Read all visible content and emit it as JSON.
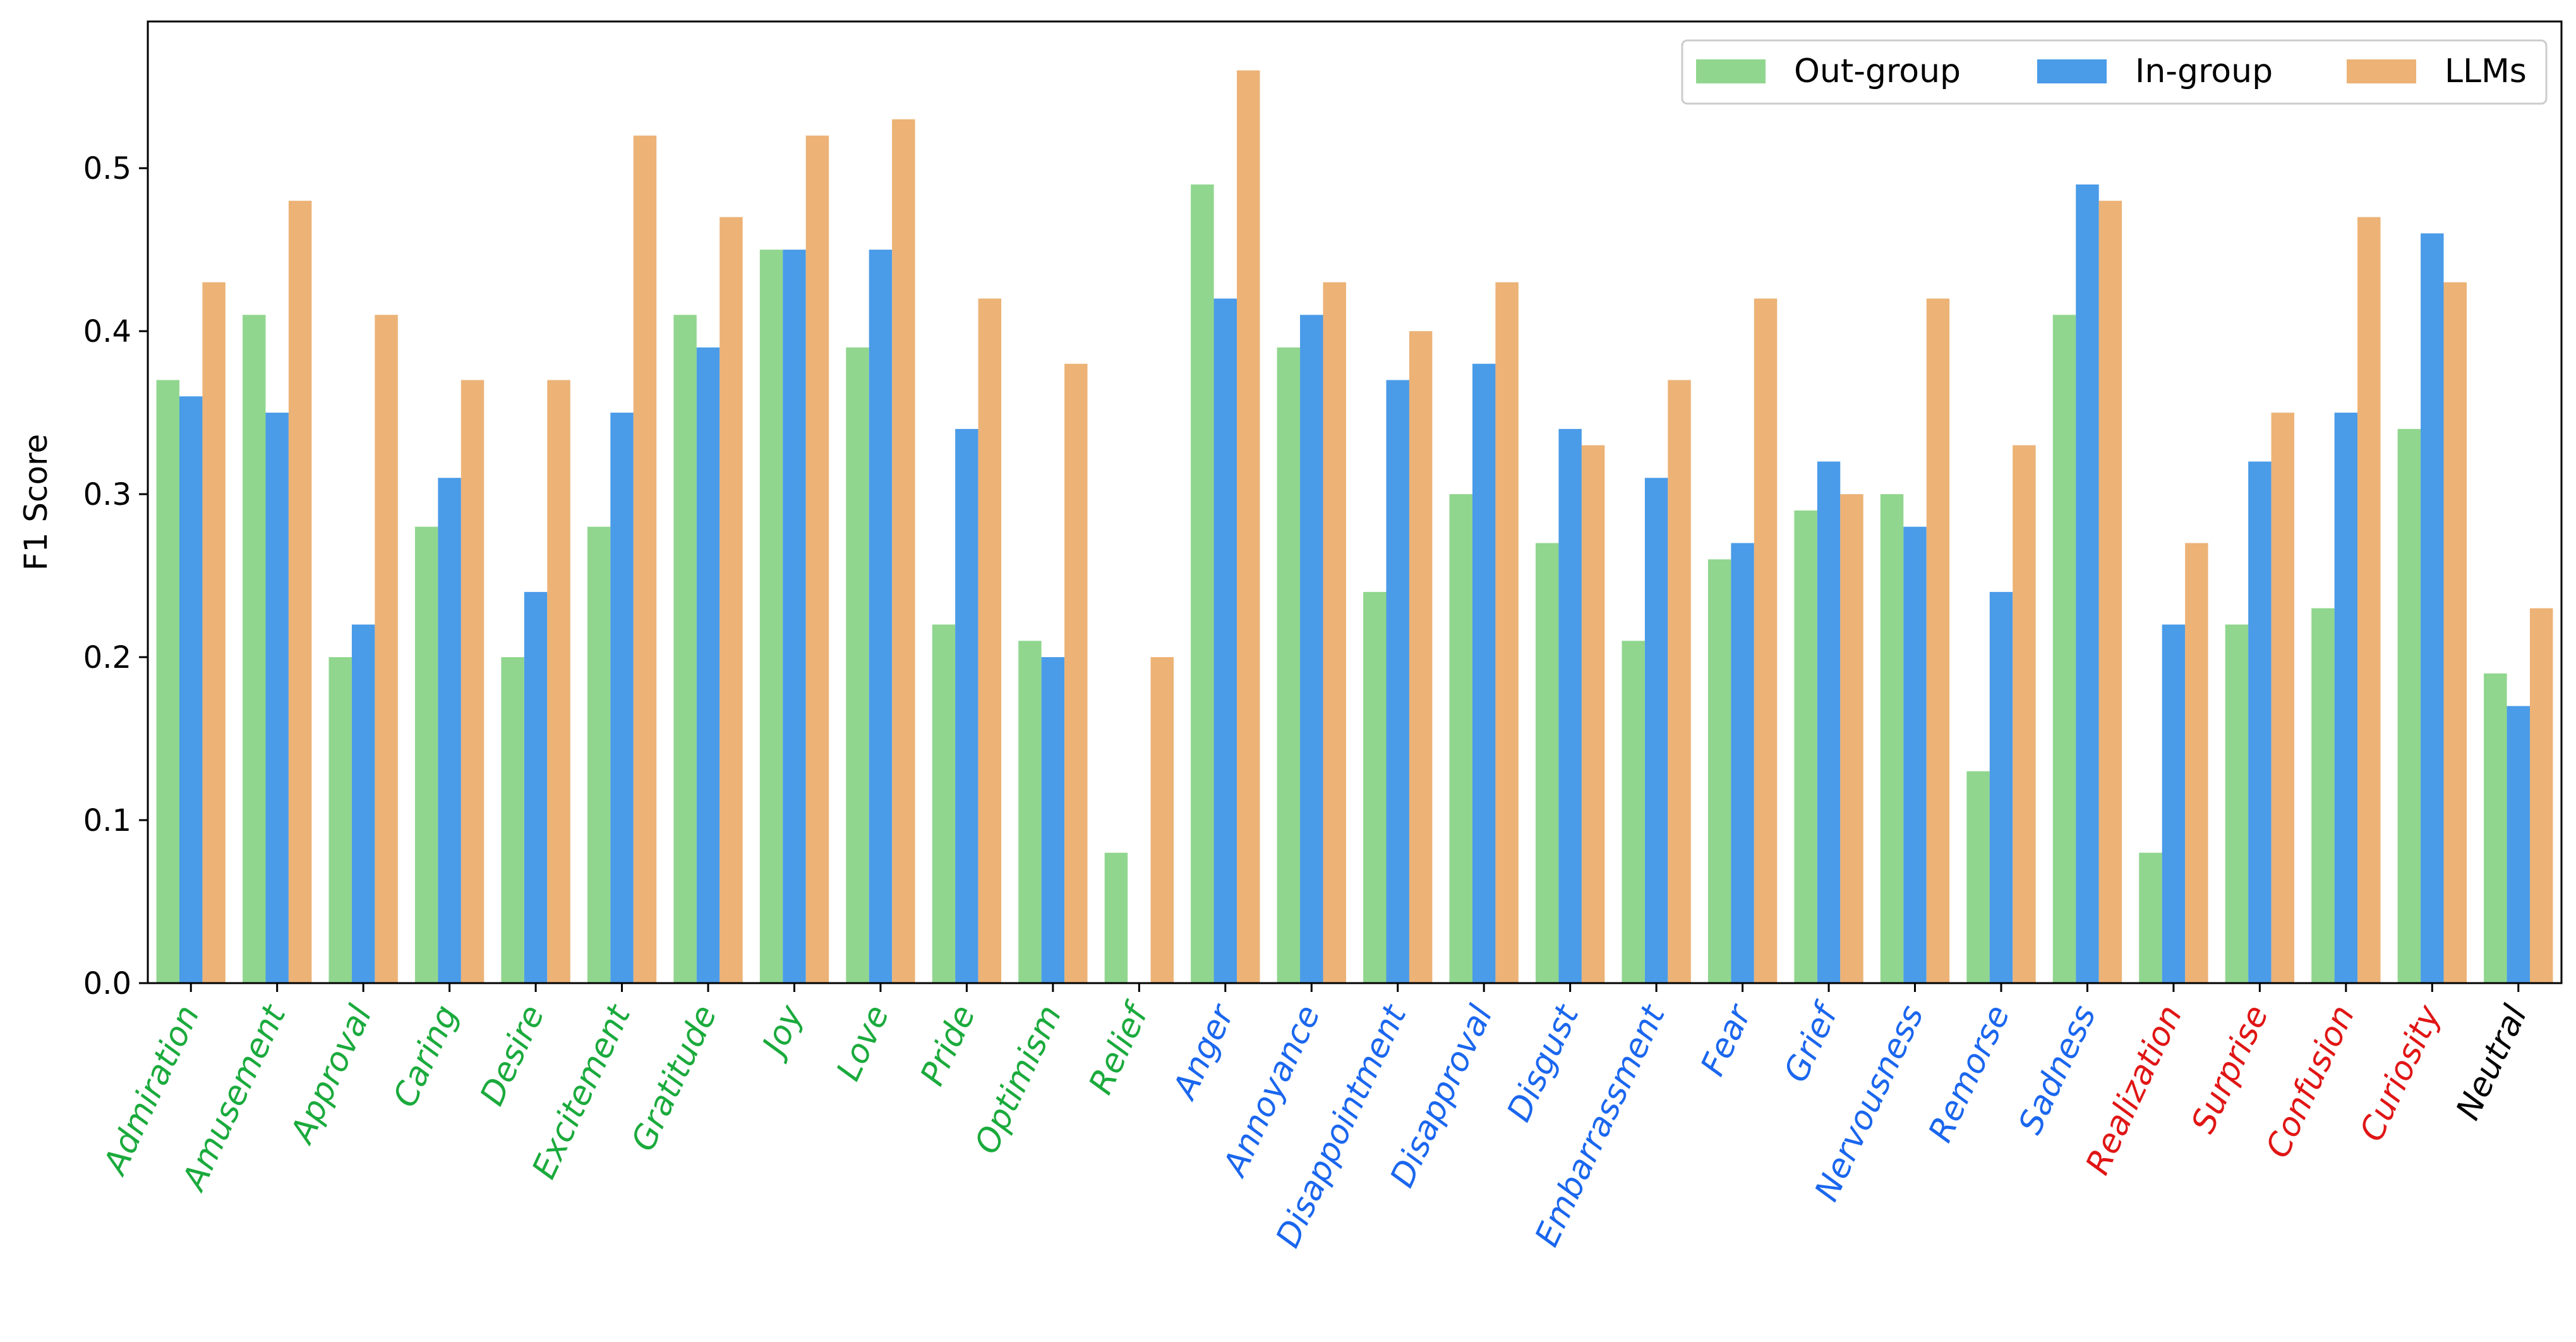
{
  "chart_data": {
    "type": "bar",
    "title": "",
    "xlabel": "",
    "ylabel": "F1 Score",
    "ylim": [
      0,
      0.59
    ],
    "yticks": [
      "0.0",
      "0.1",
      "0.2",
      "0.3",
      "0.4",
      "0.5"
    ],
    "grid": false,
    "legend_position": "top-right",
    "categories": [
      "Admiration",
      "Amusement",
      "Approval",
      "Caring",
      "Desire",
      "Excitement",
      "Gratitude",
      "Joy",
      "Love",
      "Pride",
      "Optimism",
      "Relief",
      "Anger",
      "Annoyance",
      "Disappointment",
      "Disapproval",
      "Disgust",
      "Embarrassment",
      "Fear",
      "Grief",
      "Nervousness",
      "Remorse",
      "Sadness",
      "Realization",
      "Surprise",
      "Confusion",
      "Curiosity",
      "Neutral"
    ],
    "category_groups": [
      "positive",
      "positive",
      "positive",
      "positive",
      "positive",
      "positive",
      "positive",
      "positive",
      "positive",
      "positive",
      "positive",
      "positive",
      "negative",
      "negative",
      "negative",
      "negative",
      "negative",
      "negative",
      "negative",
      "negative",
      "negative",
      "negative",
      "negative",
      "ambiguous",
      "ambiguous",
      "ambiguous",
      "ambiguous",
      "neutral"
    ],
    "group_colors": {
      "positive": "#1aaa3c",
      "negative": "#1a66ee",
      "ambiguous": "#e01515",
      "neutral": "#000000"
    },
    "series": [
      {
        "name": "Out-group",
        "color": "#90d68e",
        "values": [
          0.37,
          0.41,
          0.2,
          0.28,
          0.2,
          0.28,
          0.41,
          0.45,
          0.39,
          0.22,
          0.21,
          0.08,
          0.49,
          0.39,
          0.24,
          0.3,
          0.27,
          0.21,
          0.26,
          0.29,
          0.3,
          0.13,
          0.41,
          0.08,
          0.22,
          0.23,
          0.34,
          0.19
        ]
      },
      {
        "name": "In-group",
        "color": "#4a9be8",
        "values": [
          0.36,
          0.35,
          0.22,
          0.31,
          0.24,
          0.35,
          0.39,
          0.45,
          0.45,
          0.34,
          0.2,
          0.0,
          0.42,
          0.41,
          0.37,
          0.38,
          0.34,
          0.31,
          0.27,
          0.32,
          0.28,
          0.24,
          0.49,
          0.22,
          0.32,
          0.35,
          0.46,
          0.17
        ]
      },
      {
        "name": "LLMs",
        "color": "#ecb276",
        "values": [
          0.43,
          0.48,
          0.41,
          0.37,
          0.37,
          0.52,
          0.47,
          0.52,
          0.53,
          0.42,
          0.38,
          0.2,
          0.56,
          0.43,
          0.4,
          0.43,
          0.33,
          0.37,
          0.42,
          0.3,
          0.42,
          0.33,
          0.48,
          0.27,
          0.35,
          0.47,
          0.43,
          0.23
        ]
      }
    ]
  }
}
